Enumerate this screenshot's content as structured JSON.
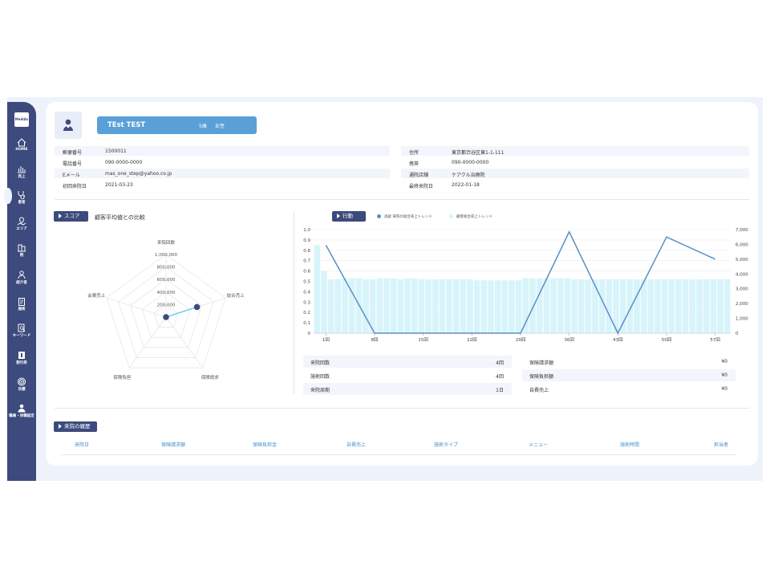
{
  "sidebar": {
    "logo": "MediAs",
    "items": [
      {
        "label": "HOME",
        "icon": "home-icon"
      },
      {
        "label": "売上",
        "icon": "bar-chart-icon"
      },
      {
        "label": "患者",
        "icon": "stethoscope-icon"
      },
      {
        "label": "エリア",
        "icon": "map-icon"
      },
      {
        "label": "院",
        "icon": "building-icon"
      },
      {
        "label": "紹介者",
        "icon": "person-icon"
      },
      {
        "label": "施術",
        "icon": "clipboard-icon"
      },
      {
        "label": "キーワード",
        "icon": "search-doc-icon"
      },
      {
        "label": "割引券",
        "icon": "ticket-icon"
      },
      {
        "label": "目標",
        "icon": "target-icon"
      },
      {
        "label": "職員・休職設定",
        "icon": "user-icon"
      }
    ]
  },
  "patient": {
    "name": "TEst TEST",
    "age": "5歳",
    "sex": "女性"
  },
  "info_left": [
    {
      "key": "郵便番号",
      "value": "1500011"
    },
    {
      "key": "電話番号",
      "value": "090-0000-0000"
    },
    {
      "key": "Eメール",
      "value": "mas_one_step@yahoo.co.jp"
    },
    {
      "key": "初回来院日",
      "value": "2021-03-23"
    }
  ],
  "info_right": [
    {
      "key": "住所",
      "value": "東京都渋谷区東1-1-111"
    },
    {
      "key": "携帯",
      "value": "090-0000-0000"
    },
    {
      "key": "通院店舗",
      "value": "ケアクル治療院"
    },
    {
      "key": "最終来院日",
      "value": "2022-01-18"
    }
  ],
  "score": {
    "tag": "スコア",
    "subtitle": "顧客平均値との比較"
  },
  "activity": {
    "tag": "行動",
    "legend_a": "高齢 来院の総合売上トレンド",
    "legend_b": "顧客総合売上トレンド"
  },
  "stats_left": [
    {
      "key": "来院回数",
      "value": "4回"
    },
    {
      "key": "施術回数",
      "value": "4回"
    },
    {
      "key": "来院周期",
      "value": "1日"
    }
  ],
  "stats_right": [
    {
      "key": "保険請求額",
      "value": "¥0"
    },
    {
      "key": "保険負担額",
      "value": "¥0"
    },
    {
      "key": "自費売上",
      "value": "¥0"
    }
  ],
  "history": {
    "tag": "来院の履歴",
    "columns": [
      "来院日",
      "保険請求額",
      "保険負担金",
      "自費売上",
      "施術タイプ",
      "メニュー",
      "施術時間",
      "担当者"
    ]
  },
  "colors": {
    "sidebar": "#3d4a7d",
    "accent": "#5aa0d8",
    "line": "#5a8fc4",
    "bars": "#d8f4fb"
  },
  "chart_data": [
    {
      "type": "radar",
      "axes": [
        "来院回数",
        "総合売上",
        "保険請求",
        "保険負担",
        "会費売上"
      ],
      "tick_labels": [
        "200,000",
        "400,000",
        "600,000",
        "800,000",
        "1,000,000"
      ],
      "range": [
        0,
        1000000
      ],
      "values": [
        0,
        520000,
        0,
        0,
        0
      ],
      "grid": true
    },
    {
      "type": "bar+line",
      "x_tick_labels": [
        "1回",
        "8回",
        "15回",
        "22回",
        "29回",
        "36回",
        "43回",
        "50回",
        "57回"
      ],
      "y_left": {
        "ticks": [
          "0",
          "0.1",
          "0.2",
          "0.3",
          "0.4",
          "0.5",
          "0.6",
          "0.7",
          "0.8",
          "0.9",
          "1.0"
        ],
        "range": [
          0,
          1
        ]
      },
      "y_right": {
        "ticks": [
          "0",
          "1,000",
          "2,000",
          "3,000",
          "4,000",
          "5,000",
          "6,000",
          "7,000"
        ],
        "range": [
          0,
          7000
        ]
      },
      "bars": [
        0.85,
        0.6,
        0.52,
        0.52,
        0.53,
        0.53,
        0.53,
        0.52,
        0.52,
        0.53,
        0.53,
        0.53,
        0.52,
        0.53,
        0.53,
        0.52,
        0.52,
        0.52,
        0.52,
        0.52,
        0.52,
        0.52,
        0.52,
        0.51,
        0.51,
        0.51,
        0.51,
        0.51,
        0.51,
        0.51,
        0.53,
        0.53,
        0.53,
        0.53,
        0.53,
        0.53,
        0.53,
        0.52,
        0.52,
        0.52,
        0.52,
        0.52,
        0.52,
        0.52,
        0.52,
        0.52,
        0.52,
        0.52,
        0.52,
        0.52,
        0.52,
        0.52,
        0.52,
        0.52,
        0.52,
        0.52,
        0.52,
        0.52,
        0.52,
        0.52
      ],
      "line": [
        {
          "x": 1,
          "y": 5950
        },
        {
          "x": 8,
          "y": 0
        },
        {
          "x": 29,
          "y": 0
        },
        {
          "x": 36,
          "y": 6850
        },
        {
          "x": 43,
          "y": 0
        },
        {
          "x": 50,
          "y": 6500
        },
        {
          "x": 57,
          "y": 5000
        }
      ],
      "grid": true
    }
  ]
}
